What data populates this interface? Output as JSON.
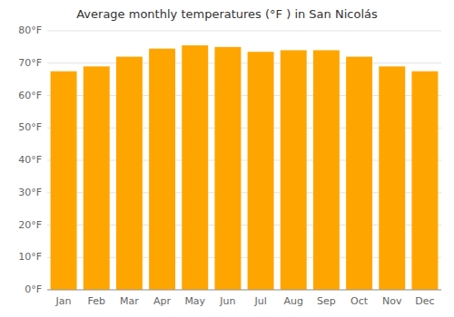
{
  "chart_data": {
    "type": "bar",
    "title": "Average monthly temperatures (°F ) in San Nicolás",
    "categories": [
      "Jan",
      "Feb",
      "Mar",
      "Apr",
      "May",
      "Jun",
      "Jul",
      "Aug",
      "Sep",
      "Oct",
      "Nov",
      "Dec"
    ],
    "values": [
      67.5,
      69.0,
      72.0,
      74.5,
      75.5,
      75.0,
      73.5,
      74.0,
      74.0,
      72.0,
      69.0,
      67.5
    ],
    "color": "#FFA500",
    "ylim": [
      0,
      80
    ],
    "yticks": [
      {
        "value": 0,
        "label": "0°F"
      },
      {
        "value": 10,
        "label": "10°F"
      },
      {
        "value": 20,
        "label": "20°F"
      },
      {
        "value": 30,
        "label": "30°F"
      },
      {
        "value": 40,
        "label": "40°F"
      },
      {
        "value": 50,
        "label": "50°F"
      },
      {
        "value": 60,
        "label": "60°F"
      },
      {
        "value": 70,
        "label": "70°F"
      },
      {
        "value": 80,
        "label": "80°F"
      }
    ],
    "grid": true
  }
}
